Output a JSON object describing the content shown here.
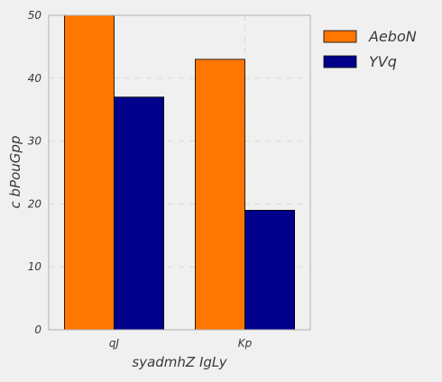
{
  "chart_data": {
    "type": "bar",
    "title": "",
    "categories": [
      "qJ",
      "Kp"
    ],
    "series": [
      {
        "name": "AeboN",
        "values": [
          50,
          43
        ],
        "color": "#ff7600"
      },
      {
        "name": "YVq",
        "values": [
          37,
          19
        ],
        "color": "#00008b"
      }
    ],
    "xlabel": "syadmhZ IgLy",
    "ylabel": "c bPouGpp",
    "ylim": [
      0,
      50
    ],
    "yticks": [
      0,
      10,
      20,
      30,
      40,
      50
    ],
    "grid": true,
    "legend_position": "right",
    "background_color": "#f0f0f0",
    "grid_color": "#d8d8d8",
    "axis_color": "#b0b0b0"
  }
}
